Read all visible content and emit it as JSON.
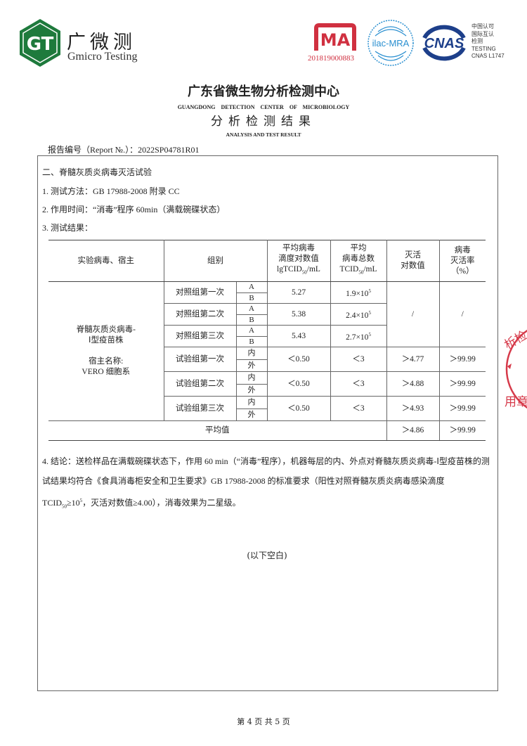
{
  "header": {
    "logo_mark": "GT",
    "logo_cn": "广微测",
    "logo_en": "Gmicro Testing",
    "cma_mark": "MA",
    "cma_number": "201819000883",
    "ilac_mark": "ilac-MRA",
    "cnas_mark": "CNAS",
    "cnas_side": [
      "中国认可",
      "国际互认",
      "检测",
      "TESTING",
      "CNAS L1747"
    ],
    "colors": {
      "logo_green": "#1e7a3c",
      "cma_red": "#d03040",
      "ilac_blue": "#2a8fd0",
      "cnas_blue": "#1d3f8a"
    }
  },
  "titles": {
    "center_cn": "广东省微生物分析检测中心",
    "center_en": "GUANGDONG DETECTION CENTER OF MICROBIOLOGY",
    "doc_cn": "分析检测结果",
    "doc_en": "ANALYSIS AND TEST RESULT"
  },
  "report_no": "报告编号（Report №.）：2022SP04781R01",
  "section": {
    "heading": "二、脊髓灰质炎病毒灭活试验",
    "item1": "1. 测试方法：GB 17988-2008 附录 CC",
    "item2": "2. 作用时间：“消毒”程序 60min（满载碗碟状态）",
    "item3": "3. 测试结果："
  },
  "table": {
    "headers": {
      "virus_host": "实验病毒、宿主",
      "group": "组别",
      "titer": [
        "平均病毒",
        "滴度对数值",
        "lgTCID",
        "50",
        "/mL"
      ],
      "total": [
        "平均",
        "病毒总数",
        "TCID",
        "50",
        "/mL"
      ],
      "log_kill": [
        "灭活",
        "对数值"
      ],
      "rate": [
        "病毒",
        "灭活率",
        "（%）"
      ]
    },
    "virus": [
      "脊髓灰质炎病毒-",
      "Ⅰ型疫苗株"
    ],
    "host": [
      "宿主名称:",
      "VERO 细胞系"
    ],
    "control_rows": [
      {
        "group": "对照组第一次",
        "sub": [
          "A",
          "B"
        ],
        "titer": "5.27",
        "total_base": "1.9×10",
        "total_exp": "5"
      },
      {
        "group": "对照组第二次",
        "sub": [
          "A",
          "B"
        ],
        "titer": "5.38",
        "total_base": "2.4×10",
        "total_exp": "5"
      },
      {
        "group": "对照组第三次",
        "sub": [
          "A",
          "B"
        ],
        "titer": "5.43",
        "total_base": "2.7×10",
        "total_exp": "5"
      }
    ],
    "control_log_kill": "/",
    "control_rate": "/",
    "test_rows": [
      {
        "group": "试验组第一次",
        "sub": [
          "内",
          "外"
        ],
        "titer": "＜0.50",
        "total": "＜3",
        "log_kill": "＞4.77",
        "rate": "＞99.99"
      },
      {
        "group": "试验组第二次",
        "sub": [
          "内",
          "外"
        ],
        "titer": "＜0.50",
        "total": "＜3",
        "log_kill": "＞4.88",
        "rate": "＞99.99"
      },
      {
        "group": "试验组第三次",
        "sub": [
          "内",
          "外"
        ],
        "titer": "＜0.50",
        "total": "＜3",
        "log_kill": "＞4.93",
        "rate": "＞99.99"
      }
    ],
    "average": {
      "label": "平均值",
      "log_kill": "＞4.86",
      "rate": "＞99.99"
    }
  },
  "conclusion": {
    "part1": "4. 结论：送检样品在满载碗碟状态下，作用 60 min（“消毒”程序），机器每层的内、外点对脊髓灰质炎病毒-Ⅰ型疫苗株的测试结果均符合《食具消毒柜安全和卫生要求》GB 17988-2008 的标准要求（阳性对照脊髓灰质炎病毒感染滴度 TCID",
    "sub": "50",
    "part2": "≥10",
    "sup": "5",
    "part3": "，灭活对数值≥4.00），消毒效果为二星级。"
  },
  "blank_note": "(以下空白)",
  "footer": "第 4 页 共 5 页",
  "seal": {
    "text": "析检…用章",
    "color": "#d63a4a"
  }
}
